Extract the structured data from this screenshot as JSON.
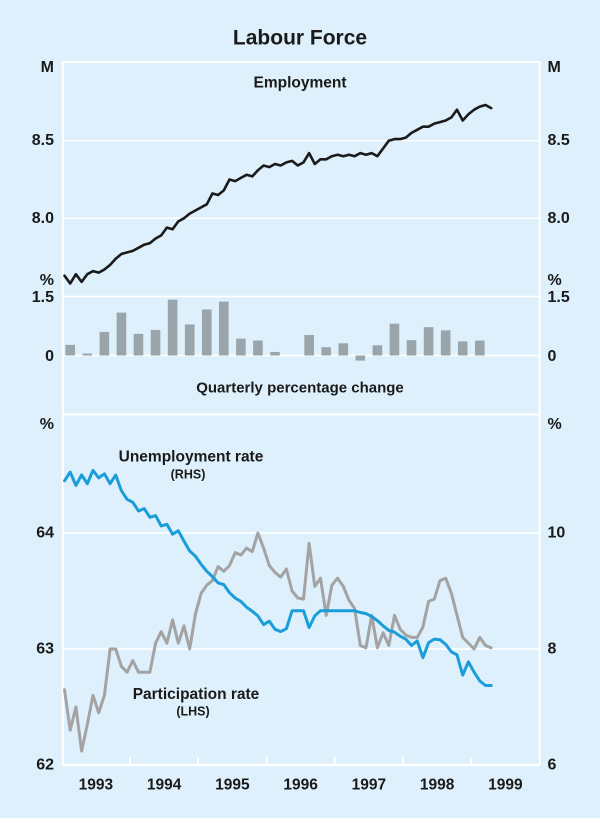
{
  "page": {
    "title": "Labour Force",
    "background_color": "#def0fb",
    "grid_color": "#ffffff",
    "text_color": "#1a1a1a"
  },
  "x_axis": {
    "start_year": 1993,
    "end_year": 2000,
    "year_labels": [
      "1993",
      "1994",
      "1995",
      "1996",
      "1997",
      "1998",
      "1999"
    ]
  },
  "chart_data": [
    {
      "id": "employment",
      "type": "line",
      "title": "Employment",
      "unit_left": "M",
      "unit_right": "M",
      "yticks": [
        {
          "v": 8.5,
          "label": "8.5"
        },
        {
          "v": 8.0,
          "label": "8.0"
        }
      ],
      "ylim": [
        7.47,
        9.02
      ],
      "x_start_year": 1993,
      "frequency": "monthly",
      "series": [
        {
          "name": "Employment (millions)",
          "color": "#1a1a1a",
          "width": 2.6,
          "values": [
            7.63,
            7.58,
            7.64,
            7.59,
            7.64,
            7.66,
            7.65,
            7.67,
            7.7,
            7.74,
            7.77,
            7.78,
            7.79,
            7.81,
            7.83,
            7.84,
            7.87,
            7.89,
            7.94,
            7.93,
            7.98,
            8.0,
            8.03,
            8.05,
            8.07,
            8.09,
            8.16,
            8.15,
            8.18,
            8.25,
            8.24,
            8.26,
            8.28,
            8.27,
            8.31,
            8.34,
            8.33,
            8.35,
            8.34,
            8.36,
            8.37,
            8.34,
            8.36,
            8.42,
            8.35,
            8.38,
            8.38,
            8.4,
            8.41,
            8.4,
            8.41,
            8.4,
            8.42,
            8.41,
            8.42,
            8.4,
            8.45,
            8.5,
            8.51,
            8.51,
            8.52,
            8.55,
            8.57,
            8.59,
            8.59,
            8.61,
            8.62,
            8.63,
            8.65,
            8.7,
            8.63,
            8.67,
            8.7,
            8.72,
            8.73,
            8.71
          ]
        }
      ]
    },
    {
      "id": "quarterly-change",
      "type": "bar",
      "title": "Quarterly percentage change",
      "unit_left": "%",
      "unit_right": "%",
      "yticks": [
        {
          "v": 1.5,
          "label": "1.5"
        },
        {
          "v": 0,
          "label": "0"
        }
      ],
      "ylim": [
        -1.5,
        1.5
      ],
      "bar_color": "#9aa5ab",
      "categories": [
        "1993 Q1",
        "1993 Q2",
        "1993 Q3",
        "1993 Q4",
        "1994 Q1",
        "1994 Q2",
        "1994 Q3",
        "1994 Q4",
        "1995 Q1",
        "1995 Q2",
        "1995 Q3",
        "1995 Q4",
        "1996 Q1",
        "1996 Q2",
        "1996 Q3",
        "1996 Q4",
        "1997 Q1",
        "1997 Q2",
        "1997 Q3",
        "1997 Q4",
        "1998 Q1",
        "1998 Q2",
        "1998 Q3",
        "1998 Q4",
        "1999 Q1"
      ],
      "values": [
        0.27,
        0.05,
        0.6,
        1.09,
        0.55,
        0.65,
        1.42,
        0.79,
        1.17,
        1.37,
        0.43,
        0.38,
        0.09,
        0.0,
        0.52,
        0.21,
        0.31,
        -0.13,
        0.26,
        0.81,
        0.39,
        0.72,
        0.64,
        0.36,
        0.38
      ]
    },
    {
      "id": "rates",
      "type": "line",
      "unit_left": "%",
      "unit_right": "%",
      "yticks_left": [
        {
          "v": 64,
          "label": "64"
        },
        {
          "v": 63,
          "label": "63"
        },
        {
          "v": 62,
          "label": "62"
        }
      ],
      "yticks_right": [
        {
          "v": 10,
          "label": "10"
        },
        {
          "v": 8,
          "label": "8"
        },
        {
          "v": 6,
          "label": "6"
        }
      ],
      "ylim_left": [
        62,
        65.03
      ],
      "ylim_right": [
        6,
        12.06
      ],
      "x_start_year": 1993,
      "frequency": "monthly",
      "series": [
        {
          "name": "Unemployment rate",
          "sub_label": "(RHS)",
          "axis": "right",
          "color": "#1b9dd9",
          "width": 3,
          "values": [
            10.9,
            11.05,
            10.82,
            11.0,
            10.85,
            11.08,
            10.95,
            11.02,
            10.85,
            11.0,
            10.73,
            10.58,
            10.53,
            10.38,
            10.42,
            10.27,
            10.3,
            10.12,
            10.15,
            9.98,
            10.04,
            9.86,
            9.69,
            9.6,
            9.46,
            9.34,
            9.25,
            9.14,
            9.11,
            8.97,
            8.88,
            8.82,
            8.72,
            8.65,
            8.57,
            8.42,
            8.48,
            8.34,
            8.3,
            8.35,
            8.66,
            8.66,
            8.66,
            8.37,
            8.57,
            8.66,
            8.66,
            8.66,
            8.66,
            8.66,
            8.66,
            8.66,
            8.63,
            8.61,
            8.56,
            8.49,
            8.4,
            8.32,
            8.29,
            8.22,
            8.17,
            8.06,
            8.14,
            7.85,
            8.11,
            8.17,
            8.16,
            8.08,
            7.95,
            7.9,
            7.55,
            7.78,
            7.6,
            7.45,
            7.37,
            7.37
          ]
        },
        {
          "name": "Participation rate",
          "sub_label": "(LHS)",
          "axis": "left",
          "color": "#a3a3a3",
          "width": 3,
          "values": [
            62.65,
            62.3,
            62.5,
            62.12,
            62.35,
            62.6,
            62.45,
            62.6,
            63.0,
            63.0,
            62.85,
            62.8,
            62.9,
            62.8,
            62.8,
            62.8,
            63.05,
            63.15,
            63.05,
            63.25,
            63.05,
            63.2,
            63.0,
            63.3,
            63.48,
            63.55,
            63.59,
            63.71,
            63.67,
            63.72,
            63.83,
            63.81,
            63.87,
            63.84,
            64.0,
            63.87,
            63.72,
            63.66,
            63.62,
            63.69,
            63.5,
            63.44,
            63.43,
            63.91,
            63.54,
            63.61,
            63.29,
            63.55,
            63.61,
            63.54,
            63.42,
            63.35,
            63.03,
            63.01,
            63.29,
            63.01,
            63.14,
            63.03,
            63.29,
            63.17,
            63.12,
            63.1,
            63.1,
            63.19,
            63.41,
            63.43,
            63.59,
            63.61,
            63.48,
            63.29,
            63.1,
            63.05,
            63.0,
            63.1,
            63.03,
            63.01
          ]
        }
      ]
    }
  ]
}
